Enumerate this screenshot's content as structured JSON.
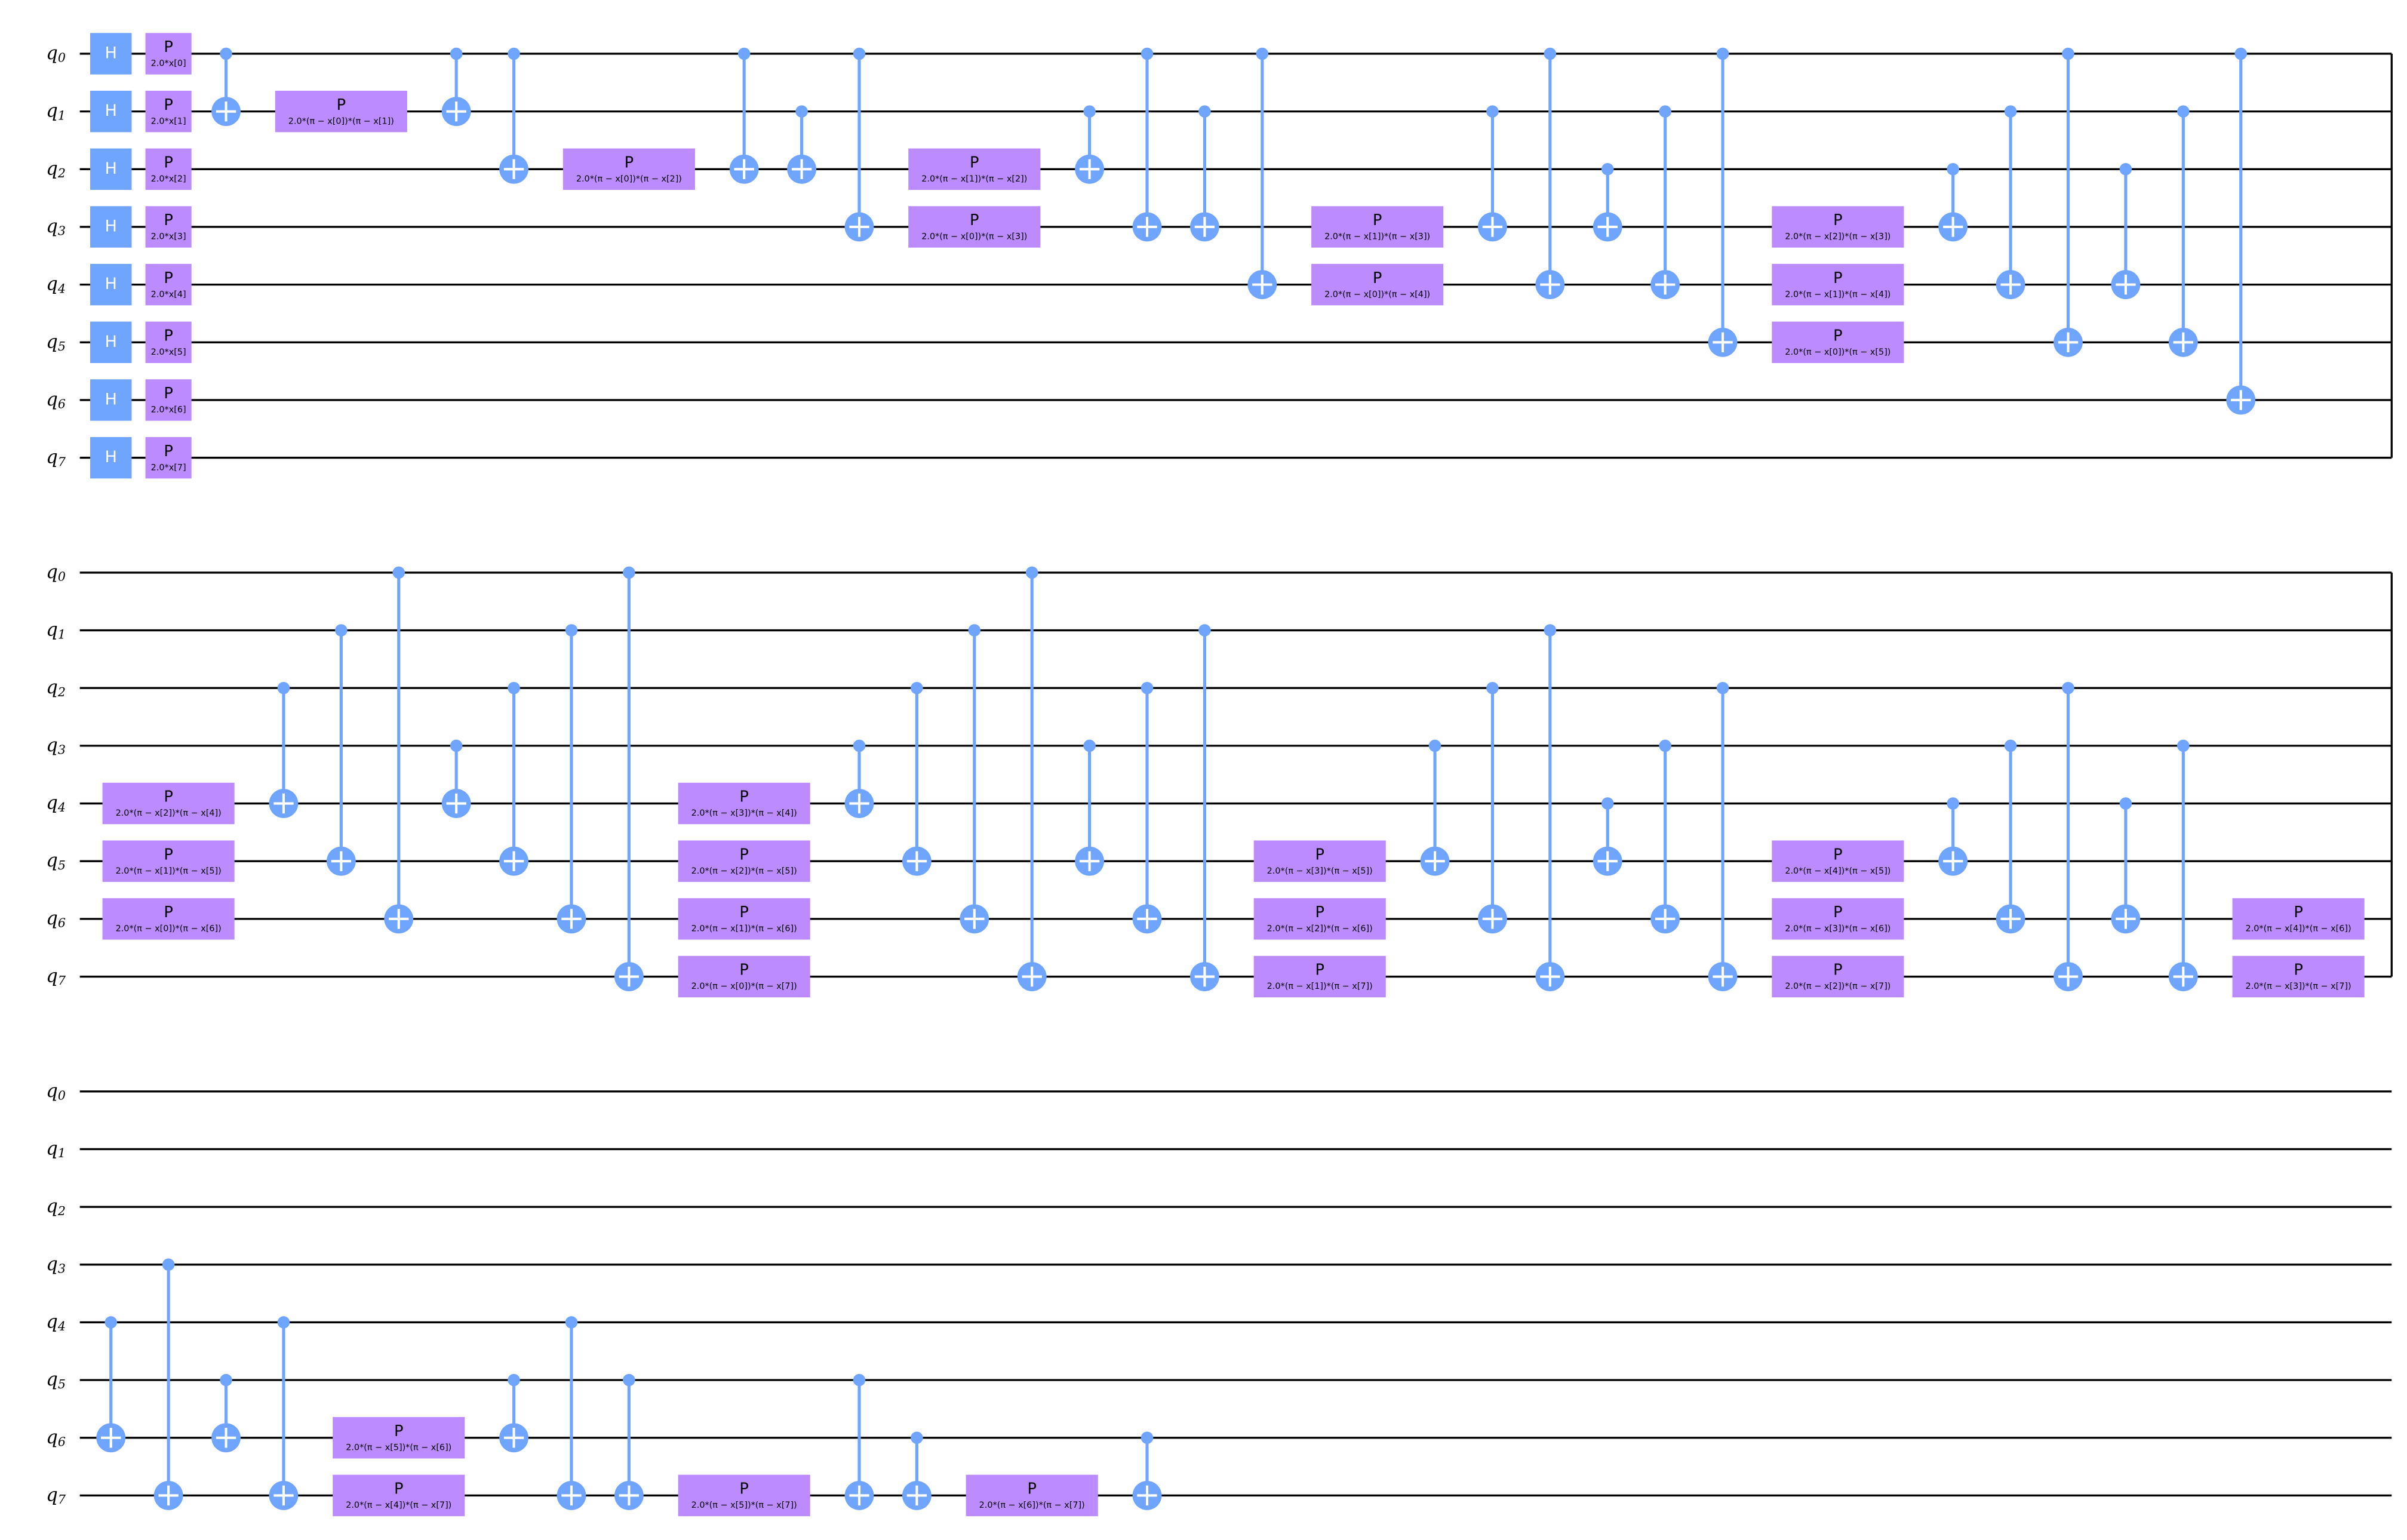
{
  "rows": [
    {
      "wires": [
        {
          "name": "q",
          "index": "0"
        },
        {
          "name": "q",
          "index": "1"
        },
        {
          "name": "q",
          "index": "2"
        },
        {
          "name": "q",
          "index": "3"
        },
        {
          "name": "q",
          "index": "4"
        },
        {
          "name": "q",
          "index": "5"
        },
        {
          "name": "q",
          "index": "6"
        },
        {
          "name": "q",
          "index": "7"
        }
      ],
      "columns": [
        [
          {
            "label": "H",
            "qubit": 0
          },
          {
            "label": "H",
            "qubit": 1
          },
          {
            "label": "H",
            "qubit": 2
          },
          {
            "label": "H",
            "qubit": 3
          },
          {
            "label": "H",
            "qubit": 4
          },
          {
            "label": "H",
            "qubit": 5
          },
          {
            "label": "H",
            "qubit": 6
          },
          {
            "label": "H",
            "qubit": 7
          }
        ],
        [
          {
            "label": "P",
            "param": "2.0*x[0]",
            "qubit": 0
          },
          {
            "label": "P",
            "param": "2.0*x[1]",
            "qubit": 1
          },
          {
            "label": "P",
            "param": "2.0*x[2]",
            "qubit": 2
          },
          {
            "label": "P",
            "param": "2.0*x[3]",
            "qubit": 3
          },
          {
            "label": "P",
            "param": "2.0*x[4]",
            "qubit": 4
          },
          {
            "label": "P",
            "param": "2.0*x[5]",
            "qubit": 5
          },
          {
            "label": "P",
            "param": "2.0*x[6]",
            "qubit": 6
          },
          {
            "label": "P",
            "param": "2.0*x[7]",
            "qubit": 7
          }
        ],
        [
          {
            "control": 0,
            "target": 1
          }
        ],
        [
          {
            "label": "P",
            "param": "2.0*(π − x[0])*(π − x[1])",
            "qubit": 1
          }
        ],
        [
          {
            "control": 0,
            "target": 1
          }
        ],
        [
          {
            "control": 0,
            "target": 2
          }
        ],
        [
          {
            "label": "P",
            "param": "2.0*(π − x[0])*(π − x[2])",
            "qubit": 2
          }
        ],
        [
          {
            "control": 0,
            "target": 2
          }
        ],
        [
          {
            "control": 1,
            "target": 2
          }
        ],
        [
          {
            "control": 0,
            "target": 3
          }
        ],
        [
          {
            "label": "P",
            "param": "2.0*(π − x[1])*(π − x[2])",
            "qubit": 2
          },
          {
            "label": "P",
            "param": "2.0*(π − x[0])*(π − x[3])",
            "qubit": 3
          }
        ],
        [
          {
            "control": 1,
            "target": 2
          }
        ],
        [
          {
            "control": 0,
            "target": 3
          }
        ],
        [
          {
            "control": 1,
            "target": 3
          }
        ],
        [
          {
            "control": 0,
            "target": 4
          }
        ],
        [
          {
            "label": "P",
            "param": "2.0*(π − x[1])*(π − x[3])",
            "qubit": 3
          },
          {
            "label": "P",
            "param": "2.0*(π − x[0])*(π − x[4])",
            "qubit": 4
          }
        ],
        [
          {
            "control": 1,
            "target": 3
          }
        ],
        [
          {
            "control": 0,
            "target": 4
          }
        ],
        [
          {
            "control": 2,
            "target": 3
          }
        ],
        [
          {
            "control": 1,
            "target": 4
          }
        ],
        [
          {
            "control": 0,
            "target": 5
          }
        ],
        [
          {
            "label": "P",
            "param": "2.0*(π − x[2])*(π − x[3])",
            "qubit": 3
          },
          {
            "label": "P",
            "param": "2.0*(π − x[1])*(π − x[4])",
            "qubit": 4
          },
          {
            "label": "P",
            "param": "2.0*(π − x[0])*(π − x[5])",
            "qubit": 5
          }
        ],
        [
          {
            "control": 2,
            "target": 3
          }
        ],
        [
          {
            "control": 1,
            "target": 4
          }
        ],
        [
          {
            "control": 0,
            "target": 5
          }
        ],
        [
          {
            "control": 2,
            "target": 4
          }
        ],
        [
          {
            "control": 1,
            "target": 5
          }
        ],
        [
          {
            "control": 0,
            "target": 6
          }
        ]
      ]
    },
    {
      "wires": [
        {
          "name": "q",
          "index": "0"
        },
        {
          "name": "q",
          "index": "1"
        },
        {
          "name": "q",
          "index": "2"
        },
        {
          "name": "q",
          "index": "3"
        },
        {
          "name": "q",
          "index": "4"
        },
        {
          "name": "q",
          "index": "5"
        },
        {
          "name": "q",
          "index": "6"
        },
        {
          "name": "q",
          "index": "7"
        }
      ],
      "columns": [
        [
          {
            "label": "P",
            "param": "2.0*(π − x[2])*(π − x[4])",
            "qubit": 4
          },
          {
            "label": "P",
            "param": "2.0*(π − x[1])*(π − x[5])",
            "qubit": 5
          },
          {
            "label": "P",
            "param": "2.0*(π − x[0])*(π − x[6])",
            "qubit": 6
          }
        ],
        [
          {
            "control": 2,
            "target": 4
          }
        ],
        [
          {
            "control": 1,
            "target": 5
          }
        ],
        [
          {
            "control": 0,
            "target": 6
          }
        ],
        [
          {
            "control": 3,
            "target": 4
          }
        ],
        [
          {
            "control": 2,
            "target": 5
          }
        ],
        [
          {
            "control": 1,
            "target": 6
          }
        ],
        [
          {
            "control": 0,
            "target": 7
          }
        ],
        [
          {
            "label": "P",
            "param": "2.0*(π − x[3])*(π − x[4])",
            "qubit": 4
          },
          {
            "label": "P",
            "param": "2.0*(π − x[2])*(π − x[5])",
            "qubit": 5
          },
          {
            "label": "P",
            "param": "2.0*(π − x[1])*(π − x[6])",
            "qubit": 6
          },
          {
            "label": "P",
            "param": "2.0*(π − x[0])*(π − x[7])",
            "qubit": 7
          }
        ],
        [
          {
            "control": 3,
            "target": 4
          }
        ],
        [
          {
            "control": 2,
            "target": 5
          }
        ],
        [
          {
            "control": 1,
            "target": 6
          }
        ],
        [
          {
            "control": 0,
            "target": 7
          }
        ],
        [
          {
            "control": 3,
            "target": 5
          }
        ],
        [
          {
            "control": 2,
            "target": 6
          }
        ],
        [
          {
            "control": 1,
            "target": 7
          }
        ],
        [
          {
            "label": "P",
            "param": "2.0*(π − x[3])*(π − x[5])",
            "qubit": 5
          },
          {
            "label": "P",
            "param": "2.0*(π − x[2])*(π − x[6])",
            "qubit": 6
          },
          {
            "label": "P",
            "param": "2.0*(π − x[1])*(π − x[7])",
            "qubit": 7
          }
        ],
        [
          {
            "control": 3,
            "target": 5
          }
        ],
        [
          {
            "control": 2,
            "target": 6
          }
        ],
        [
          {
            "control": 1,
            "target": 7
          }
        ],
        [
          {
            "control": 4,
            "target": 5
          }
        ],
        [
          {
            "control": 3,
            "target": 6
          }
        ],
        [
          {
            "control": 2,
            "target": 7
          }
        ],
        [
          {
            "label": "P",
            "param": "2.0*(π − x[4])*(π − x[5])",
            "qubit": 5
          },
          {
            "label": "P",
            "param": "2.0*(π − x[3])*(π − x[6])",
            "qubit": 6
          },
          {
            "label": "P",
            "param": "2.0*(π − x[2])*(π − x[7])",
            "qubit": 7
          }
        ],
        [
          {
            "control": 4,
            "target": 5
          }
        ],
        [
          {
            "control": 3,
            "target": 6
          }
        ],
        [
          {
            "control": 2,
            "target": 7
          }
        ],
        [
          {
            "control": 4,
            "target": 6
          }
        ],
        [
          {
            "control": 3,
            "target": 7
          }
        ],
        [
          {
            "label": "P",
            "param": "2.0*(π − x[4])*(π − x[6])",
            "qubit": 6
          },
          {
            "label": "P",
            "param": "2.0*(π − x[3])*(π − x[7])",
            "qubit": 7
          }
        ]
      ]
    },
    {
      "wires": [
        {
          "name": "q",
          "index": "0"
        },
        {
          "name": "q",
          "index": "1"
        },
        {
          "name": "q",
          "index": "2"
        },
        {
          "name": "q",
          "index": "3"
        },
        {
          "name": "q",
          "index": "4"
        },
        {
          "name": "q",
          "index": "5"
        },
        {
          "name": "q",
          "index": "6"
        },
        {
          "name": "q",
          "index": "7"
        }
      ],
      "columns": [
        [
          {
            "control": 4,
            "target": 6
          }
        ],
        [
          {
            "control": 3,
            "target": 7
          }
        ],
        [
          {
            "control": 5,
            "target": 6
          }
        ],
        [
          {
            "control": 4,
            "target": 7
          }
        ],
        [
          {
            "label": "P",
            "param": "2.0*(π − x[5])*(π − x[6])",
            "qubit": 6
          },
          {
            "label": "P",
            "param": "2.0*(π − x[4])*(π − x[7])",
            "qubit": 7
          }
        ],
        [
          {
            "control": 5,
            "target": 6
          }
        ],
        [
          {
            "control": 4,
            "target": 7
          }
        ],
        [
          {
            "control": 5,
            "target": 7
          }
        ],
        [
          {
            "label": "P",
            "param": "2.0*(π − x[5])*(π − x[7])",
            "qubit": 7
          }
        ],
        [
          {
            "control": 5,
            "target": 7
          }
        ],
        [
          {
            "control": 6,
            "target": 7
          }
        ],
        [
          {
            "label": "P",
            "param": "2.0*(π − x[6])*(π − x[7])",
            "qubit": 7
          }
        ],
        [
          {
            "control": 6,
            "target": 7
          }
        ]
      ]
    }
  ]
}
